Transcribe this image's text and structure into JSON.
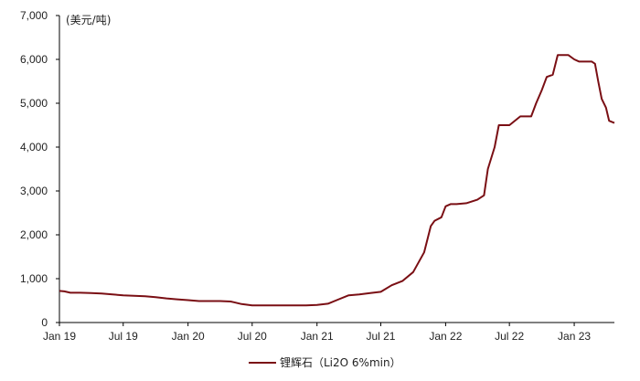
{
  "chart_data": {
    "type": "line",
    "unit_label": "(美元/吨)",
    "x_tick_labels": [
      "Jan 19",
      "Jul 19",
      "Jan 20",
      "Jul 20",
      "Jan 21",
      "Jul 21",
      "Jan 22",
      "Jul 22",
      "Jan 23"
    ],
    "y_tick_labels": [
      "0",
      "1,000",
      "2,000",
      "3,000",
      "4,000",
      "5,000",
      "6,000",
      "7,000"
    ],
    "ylim": [
      0,
      7000
    ],
    "grid": false,
    "legend_position": "bottom",
    "series": [
      {
        "name": "锂辉石（Li2O 6%min）",
        "color": "#7a0f14",
        "points": [
          [
            "2019-01-01",
            720
          ],
          [
            "2019-01-15",
            710
          ],
          [
            "2019-02-01",
            680
          ],
          [
            "2019-03-01",
            680
          ],
          [
            "2019-04-01",
            670
          ],
          [
            "2019-05-01",
            660
          ],
          [
            "2019-06-01",
            640
          ],
          [
            "2019-07-01",
            620
          ],
          [
            "2019-08-01",
            610
          ],
          [
            "2019-09-01",
            600
          ],
          [
            "2019-10-01",
            580
          ],
          [
            "2019-11-01",
            550
          ],
          [
            "2019-12-01",
            530
          ],
          [
            "2020-01-01",
            510
          ],
          [
            "2020-02-01",
            490
          ],
          [
            "2020-03-01",
            490
          ],
          [
            "2020-04-01",
            490
          ],
          [
            "2020-05-01",
            480
          ],
          [
            "2020-06-01",
            420
          ],
          [
            "2020-07-01",
            390
          ],
          [
            "2020-08-01",
            390
          ],
          [
            "2020-09-01",
            390
          ],
          [
            "2020-10-01",
            390
          ],
          [
            "2020-11-01",
            390
          ],
          [
            "2020-12-01",
            390
          ],
          [
            "2021-01-01",
            400
          ],
          [
            "2021-02-01",
            430
          ],
          [
            "2021-03-01",
            520
          ],
          [
            "2021-04-01",
            620
          ],
          [
            "2021-05-01",
            640
          ],
          [
            "2021-06-01",
            670
          ],
          [
            "2021-07-01",
            700
          ],
          [
            "2021-08-01",
            850
          ],
          [
            "2021-09-01",
            950
          ],
          [
            "2021-10-01",
            1150
          ],
          [
            "2021-11-01",
            1600
          ],
          [
            "2021-11-20",
            2200
          ],
          [
            "2021-12-01",
            2320
          ],
          [
            "2021-12-20",
            2400
          ],
          [
            "2022-01-01",
            2650
          ],
          [
            "2022-01-15",
            2700
          ],
          [
            "2022-02-01",
            2700
          ],
          [
            "2022-03-01",
            2720
          ],
          [
            "2022-04-01",
            2800
          ],
          [
            "2022-04-20",
            2900
          ],
          [
            "2022-05-01",
            3500
          ],
          [
            "2022-05-20",
            4000
          ],
          [
            "2022-06-01",
            4500
          ],
          [
            "2022-06-15",
            4500
          ],
          [
            "2022-07-01",
            4500
          ],
          [
            "2022-08-01",
            4700
          ],
          [
            "2022-09-01",
            4700
          ],
          [
            "2022-09-15",
            5000
          ],
          [
            "2022-10-01",
            5300
          ],
          [
            "2022-10-15",
            5600
          ],
          [
            "2022-11-01",
            5650
          ],
          [
            "2022-11-15",
            6100
          ],
          [
            "2022-12-01",
            6100
          ],
          [
            "2022-12-15",
            6100
          ],
          [
            "2023-01-01",
            6000
          ],
          [
            "2023-01-15",
            5950
          ],
          [
            "2023-02-01",
            5950
          ],
          [
            "2023-02-20",
            5950
          ],
          [
            "2023-03-01",
            5900
          ],
          [
            "2023-03-10",
            5500
          ],
          [
            "2023-03-20",
            5100
          ],
          [
            "2023-04-01",
            4900
          ],
          [
            "2023-04-10",
            4600
          ],
          [
            "2023-04-25",
            4550
          ]
        ]
      }
    ]
  }
}
